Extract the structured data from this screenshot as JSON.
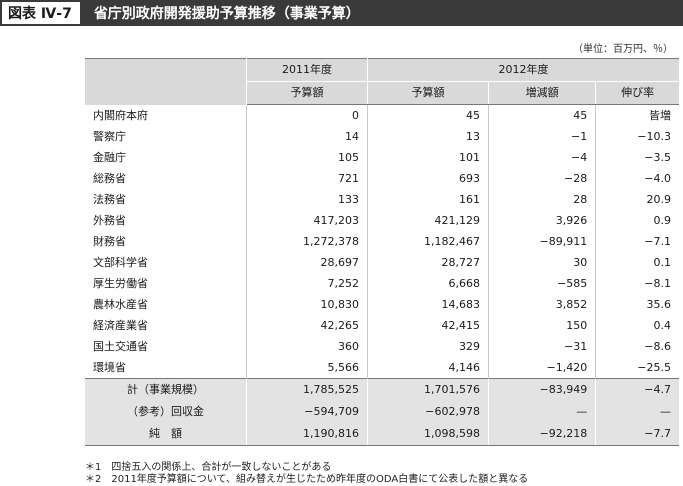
{
  "figure": {
    "label": "図表 Ⅳ-7",
    "title": "省庁別政府開発援助予算推移（事業予算）"
  },
  "unit_note": "（単位：百万円、％）",
  "table": {
    "year_headers": [
      "2011年度",
      "2012年度"
    ],
    "sub_headers": [
      "予算額",
      "予算額",
      "増減額",
      "伸び率"
    ],
    "rows": [
      {
        "name": "内閣府本府",
        "v2011": "0",
        "v2012": "45",
        "diff": "45",
        "rate": "皆増"
      },
      {
        "name": "警察庁",
        "v2011": "14",
        "v2012": "13",
        "diff": "−1",
        "rate": "−10.3"
      },
      {
        "name": "金融庁",
        "v2011": "105",
        "v2012": "101",
        "diff": "−4",
        "rate": "−3.5"
      },
      {
        "name": "総務省",
        "v2011": "721",
        "v2012": "693",
        "diff": "−28",
        "rate": "−4.0"
      },
      {
        "name": "法務省",
        "v2011": "133",
        "v2012": "161",
        "diff": "28",
        "rate": "20.9"
      },
      {
        "name": "外務省",
        "v2011": "417,203",
        "v2012": "421,129",
        "diff": "3,926",
        "rate": "0.9"
      },
      {
        "name": "財務省",
        "v2011": "1,272,378",
        "v2012": "1,182,467",
        "diff": "−89,911",
        "rate": "−7.1"
      },
      {
        "name": "文部科学省",
        "v2011": "28,697",
        "v2012": "28,727",
        "diff": "30",
        "rate": "0.1"
      },
      {
        "name": "厚生労働省",
        "v2011": "7,252",
        "v2012": "6,668",
        "diff": "−585",
        "rate": "−8.1"
      },
      {
        "name": "農林水産省",
        "v2011": "10,830",
        "v2012": "14,683",
        "diff": "3,852",
        "rate": "35.6"
      },
      {
        "name": "経済産業省",
        "v2011": "42,265",
        "v2012": "42,415",
        "diff": "150",
        "rate": "0.4"
      },
      {
        "name": "国土交通省",
        "v2011": "360",
        "v2012": "329",
        "diff": "−31",
        "rate": "−8.6"
      },
      {
        "name": "環境省",
        "v2011": "5,566",
        "v2012": "4,146",
        "diff": "−1,420",
        "rate": "−25.5"
      }
    ],
    "summary": [
      {
        "name": "計（事業規模）",
        "v2011": "1,785,525",
        "v2012": "1,701,576",
        "diff": "−83,949",
        "rate": "−4.7"
      },
      {
        "name": "（参考）回収金",
        "v2011": "−594,709",
        "v2012": "−602,978",
        "diff": "—",
        "rate": "—"
      },
      {
        "name": "純　額",
        "v2011": "1,190,816",
        "v2012": "1,098,598",
        "diff": "−92,218",
        "rate": "−7.7"
      }
    ]
  },
  "footnotes": [
    "＊1　四捨五入の関係上、合計が一致しないことがある",
    "＊2　2011年度予算額について、組み替えが生じたため昨年度のODA白書にて公表した額と異なる"
  ]
}
